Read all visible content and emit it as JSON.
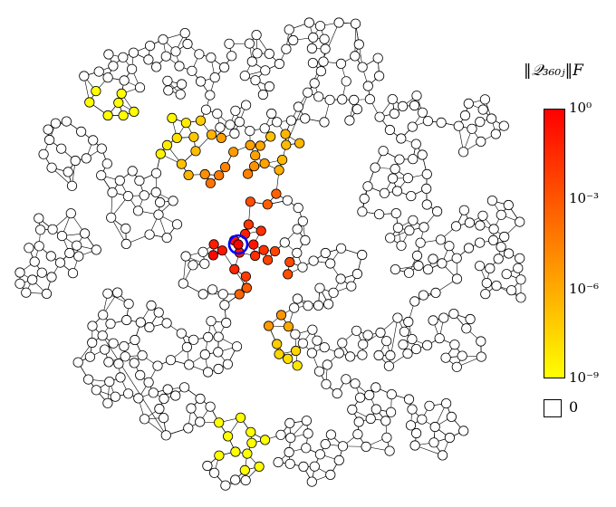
{
  "colorbar": {
    "title": "‖𝒬₃₆₀ⱼ‖F",
    "ticks": [
      "10⁰",
      "10⁻³",
      "10⁻⁶",
      "10⁻⁹"
    ],
    "zero_label": "0",
    "colors": {
      "max": "#ff0000",
      "mid": "#ff8c00",
      "min": "#ffff00",
      "zero": "#ffffff"
    }
  },
  "graph": {
    "highlight_color": "#0000ff",
    "edge_color": "#000000"
  }
}
